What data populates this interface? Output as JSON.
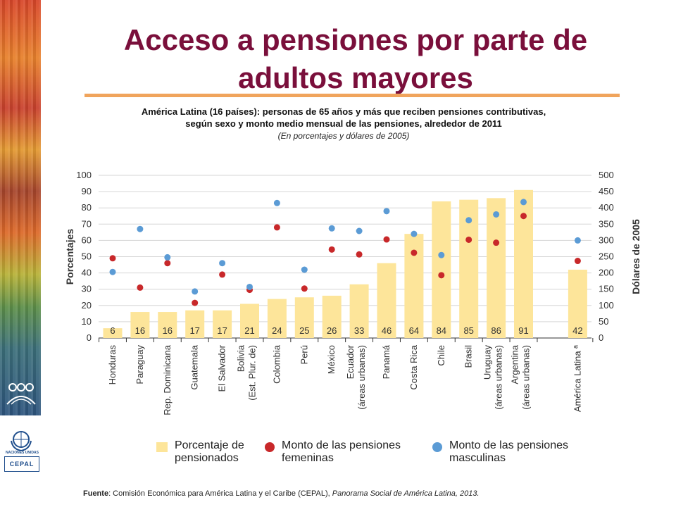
{
  "title": "Acceso a pensiones por parte de adultos mayores",
  "subtitle_line1": "América Latina (16 países): personas de 65 años y más que reciben pensiones contributivas,",
  "subtitle_line2": "según sexo y monto medio mensual de las pensiones, alrededor de 2011",
  "subtitle_units": "(En porcentajes y dólares de 2005)",
  "logos": {
    "un_text": "NACIONES UNIDAS",
    "cepal_text": "CEPAL"
  },
  "legend": {
    "bar_label": "Porcentaje de pensionados",
    "female_label": "Monto de las pensiones femeninas",
    "male_label": "Monto de las pensiones masculinas"
  },
  "source": {
    "prefix": "Fuente",
    "text": ": Comisión Económica para América Latina y el Caribe (CEPAL), ",
    "italic": "Panorama Social de América Latina, 2013."
  },
  "colors": {
    "bar": "#fde59a",
    "female": "#c8282a",
    "male": "#5b9bd5",
    "title": "#7a0f3b",
    "rule": "#f0a45c"
  },
  "chart_data": {
    "type": "bar",
    "categories": [
      "Honduras",
      "Paraguay",
      "Rep. Dominicana",
      "Guatemala",
      "El Salvador",
      "Bolivia (Est. Plur. de)",
      "Colombia",
      "Perú",
      "México",
      "Ecuador (áreas urbanas)",
      "Panamá",
      "Costa Rica",
      "Chile",
      "Brasil",
      "Uruguay (áreas urbanas)",
      "Argentina (áreas urbanas)",
      "América Latina ª"
    ],
    "category_lines": [
      [
        "Honduras"
      ],
      [
        "Paraguay"
      ],
      [
        "Rep. Dominicana"
      ],
      [
        "Guatemala"
      ],
      [
        "El Salvador"
      ],
      [
        "Bolivia",
        "(Est. Plur. de)"
      ],
      [
        "Colombia"
      ],
      [
        "Perú"
      ],
      [
        "México"
      ],
      [
        "Ecuador",
        "(áreas urbanas)"
      ],
      [
        "Panamá"
      ],
      [
        "Costa Rica"
      ],
      [
        "Chile"
      ],
      [
        "Brasil"
      ],
      [
        "Uruguay",
        "(áreas urbanas)"
      ],
      [
        "Argentina",
        "(áreas urbanas)"
      ],
      [
        "América Latina ª"
      ]
    ],
    "series": [
      {
        "name": "Porcentaje de pensionados",
        "axis": "left",
        "kind": "bar",
        "values": [
          6,
          16,
          16,
          17,
          17,
          21,
          24,
          25,
          26,
          33,
          46,
          64,
          84,
          85,
          86,
          91,
          42
        ]
      },
      {
        "name": "Monto de las pensiones femeninas",
        "axis": "right",
        "kind": "scatter",
        "values": [
          245,
          155,
          230,
          108,
          195,
          148,
          340,
          152,
          272,
          257,
          303,
          262,
          193,
          302,
          293,
          375,
          237
        ]
      },
      {
        "name": "Monto de las pensiones masculinas",
        "axis": "right",
        "kind": "scatter",
        "values": [
          203,
          335,
          248,
          143,
          230,
          157,
          415,
          210,
          337,
          329,
          390,
          320,
          255,
          362,
          380,
          418,
          300
        ]
      }
    ],
    "data_labels": [
      "6",
      "16",
      "16",
      "17",
      "17",
      "21",
      "24",
      "25",
      "26",
      "33",
      "46",
      "64",
      "84",
      "85",
      "86",
      "91",
      "42"
    ],
    "ylabel_left": "Porcentajes",
    "ylabel_right": "Dólares de 2005",
    "ylim_left": [
      0,
      100
    ],
    "ylim_right": [
      0,
      500
    ],
    "yticks_left": [
      "0",
      "10",
      "20",
      "30",
      "40",
      "50",
      "60",
      "70",
      "80",
      "90",
      "100"
    ],
    "yticks_right": [
      "0",
      "50",
      "100",
      "150",
      "200",
      "250",
      "300",
      "350",
      "400",
      "450",
      "500"
    ],
    "grid": true,
    "legend_position": "bottom"
  }
}
